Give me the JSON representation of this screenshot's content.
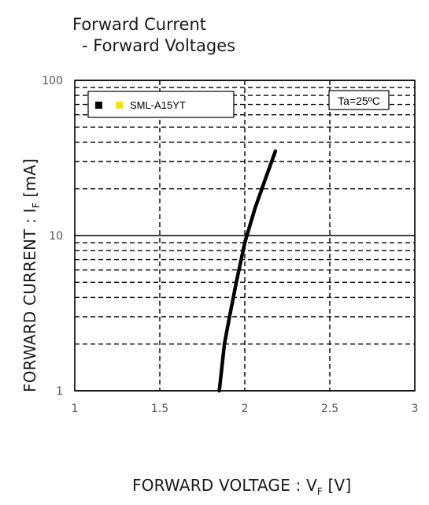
{
  "title": {
    "line1": "Forward Current",
    "line2": "- Forward Voltages"
  },
  "axis_labels": {
    "y_prefix": "FORWARD CURRENT : I",
    "y_sub": "F",
    "y_unit": " [mA]",
    "x_prefix": "FORWARD VOLTAGE : V",
    "x_sub": "F",
    "x_unit": " [V]"
  },
  "chart_data": {
    "type": "line",
    "xlabel": "FORWARD VOLTAGE : VF [V]",
    "ylabel": "FORWARD CURRENT : IF [mA]",
    "xlim": [
      1,
      3
    ],
    "ylim": [
      1,
      100
    ],
    "y_scale": "log",
    "x_ticks": [
      "1",
      "1.5",
      "2",
      "2.5",
      "3"
    ],
    "y_ticks": [
      "1",
      "10",
      "100"
    ],
    "grid": true,
    "legend": {
      "placement": "top-left",
      "entries": [
        "SML-A15YT"
      ]
    },
    "annotation": "Ta=25ºC",
    "series": [
      {
        "name": "SML-A15YT",
        "color": "#000000",
        "marker_color": "#f2e600",
        "x": [
          1.85,
          1.88,
          1.91,
          1.95,
          2.0,
          2.06,
          2.12,
          2.18
        ],
        "y": [
          1,
          2,
          3,
          5,
          9,
          15,
          23,
          35
        ]
      }
    ]
  }
}
